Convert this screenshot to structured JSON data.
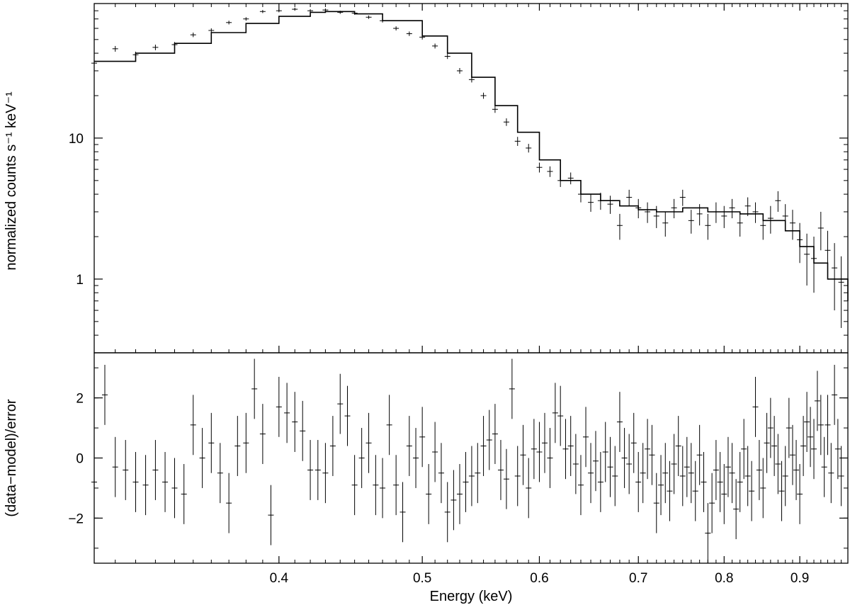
{
  "chart_data": [
    {
      "type": "scatter",
      "panel": "spectrum",
      "xlabel": "Energy (keV)",
      "ylabel": "normalized counts s⁻¹ keV⁻¹",
      "xscale": "log",
      "yscale": "log",
      "xlim": [
        0.3,
        0.97
      ],
      "ylim": [
        0.3,
        90
      ],
      "xticks": [
        0.4,
        0.5,
        0.6,
        0.7,
        0.8,
        0.9
      ],
      "yticks": [
        1,
        10
      ],
      "grid": false,
      "series": [
        {
          "type": "step",
          "x": [
            0.3,
            0.32,
            0.34,
            0.36,
            0.38,
            0.4,
            0.42,
            0.43,
            0.45,
            0.47,
            0.5,
            0.52,
            0.54,
            0.56,
            0.58,
            0.6,
            0.62,
            0.64,
            0.66,
            0.68,
            0.7,
            0.72,
            0.75,
            0.78,
            0.8,
            0.82,
            0.85,
            0.88,
            0.9,
            0.92,
            0.94,
            0.97
          ],
          "y": [
            35,
            40,
            47,
            56,
            65,
            73,
            78,
            79,
            76,
            68,
            53,
            40,
            27,
            17,
            11,
            7.0,
            5.0,
            4.0,
            3.6,
            3.3,
            3.1,
            3.0,
            3.2,
            3.0,
            3.0,
            2.9,
            2.6,
            2.2,
            1.7,
            1.3,
            1.0,
            0.7
          ]
        },
        {
          "type": "errorbar",
          "x": [
            0.3,
            0.31,
            0.32,
            0.33,
            0.34,
            0.35,
            0.36,
            0.37,
            0.38,
            0.39,
            0.4,
            0.41,
            0.42,
            0.43,
            0.44,
            0.45,
            0.46,
            0.47,
            0.48,
            0.49,
            0.5,
            0.51,
            0.52,
            0.53,
            0.54,
            0.55,
            0.56,
            0.57,
            0.58,
            0.59,
            0.6,
            0.61,
            0.62,
            0.63,
            0.64,
            0.65,
            0.66,
            0.67,
            0.68,
            0.69,
            0.7,
            0.71,
            0.72,
            0.73,
            0.74,
            0.75,
            0.76,
            0.77,
            0.78,
            0.79,
            0.8,
            0.81,
            0.82,
            0.83,
            0.84,
            0.85,
            0.86,
            0.87,
            0.88,
            0.89,
            0.9,
            0.91,
            0.92,
            0.93,
            0.94,
            0.95,
            0.96
          ],
          "y": [
            34,
            43,
            39,
            44,
            46,
            54,
            58,
            66,
            70,
            79,
            80,
            82,
            80,
            81,
            78,
            77,
            72,
            68,
            60,
            55,
            52,
            45,
            38,
            30,
            26,
            20,
            16,
            13,
            9.5,
            8.5,
            6.2,
            5.8,
            5.0,
            5.2,
            4.0,
            3.5,
            3.6,
            3.4,
            2.4,
            3.8,
            3.2,
            3.0,
            2.8,
            2.5,
            3.2,
            3.8,
            2.6,
            2.9,
            2.4,
            3.0,
            2.8,
            3.2,
            2.5,
            3.3,
            3.0,
            2.4,
            2.7,
            3.6,
            2.8,
            2.5,
            1.9,
            1.5,
            1.4,
            2.3,
            1.6,
            1.2,
            0.95
          ],
          "yerr": [
            2,
            2,
            2,
            2,
            2,
            2,
            2,
            2,
            2,
            2,
            2,
            2,
            2,
            2,
            2,
            2,
            2,
            2,
            2,
            2,
            2,
            1.8,
            1.6,
            1.4,
            1.2,
            1.0,
            0.9,
            0.8,
            0.7,
            0.6,
            0.5,
            0.5,
            0.5,
            0.5,
            0.5,
            0.5,
            0.5,
            0.5,
            0.5,
            0.5,
            0.5,
            0.5,
            0.5,
            0.5,
            0.5,
            0.5,
            0.5,
            0.5,
            0.5,
            0.5,
            0.5,
            0.5,
            0.5,
            0.5,
            0.5,
            0.5,
            0.6,
            0.6,
            0.6,
            0.6,
            0.6,
            0.6,
            0.6,
            0.7,
            0.6,
            0.6,
            0.5
          ]
        }
      ]
    },
    {
      "type": "scatter",
      "panel": "residuals",
      "xlabel": "Energy (keV)",
      "ylabel": "(data−model)/error",
      "xscale": "log",
      "xlim": [
        0.3,
        0.97
      ],
      "ylim": [
        -3.5,
        3.5
      ],
      "xticks": [
        0.4,
        0.5,
        0.6,
        0.7,
        0.8,
        0.9
      ],
      "yticks": [
        -2,
        0,
        2
      ],
      "grid": false,
      "series": [
        {
          "type": "errorbar",
          "x": [
            0.3,
            0.305,
            0.31,
            0.315,
            0.32,
            0.325,
            0.33,
            0.335,
            0.34,
            0.345,
            0.35,
            0.355,
            0.36,
            0.365,
            0.37,
            0.375,
            0.38,
            0.385,
            0.39,
            0.395,
            0.4,
            0.405,
            0.41,
            0.415,
            0.42,
            0.425,
            0.43,
            0.435,
            0.44,
            0.445,
            0.45,
            0.455,
            0.46,
            0.465,
            0.47,
            0.475,
            0.48,
            0.485,
            0.49,
            0.495,
            0.5,
            0.505,
            0.51,
            0.515,
            0.52,
            0.525,
            0.53,
            0.535,
            0.54,
            0.545,
            0.55,
            0.555,
            0.56,
            0.565,
            0.57,
            0.575,
            0.58,
            0.585,
            0.59,
            0.595,
            0.6,
            0.605,
            0.61,
            0.615,
            0.62,
            0.625,
            0.63,
            0.635,
            0.64,
            0.645,
            0.65,
            0.655,
            0.66,
            0.665,
            0.67,
            0.675,
            0.68,
            0.685,
            0.69,
            0.695,
            0.7,
            0.705,
            0.71,
            0.715,
            0.72,
            0.725,
            0.73,
            0.735,
            0.74,
            0.745,
            0.75,
            0.755,
            0.76,
            0.765,
            0.77,
            0.775,
            0.78,
            0.785,
            0.79,
            0.795,
            0.8,
            0.805,
            0.81,
            0.815,
            0.82,
            0.825,
            0.83,
            0.835,
            0.84,
            0.845,
            0.85,
            0.855,
            0.86,
            0.865,
            0.87,
            0.875,
            0.88,
            0.885,
            0.89,
            0.895,
            0.9,
            0.905,
            0.91,
            0.915,
            0.92,
            0.925,
            0.93,
            0.935,
            0.94,
            0.945,
            0.95,
            0.955,
            0.96
          ],
          "y": [
            -0.8,
            2.1,
            -0.3,
            -0.4,
            -0.8,
            -0.9,
            -0.4,
            -0.8,
            -1.0,
            -1.2,
            1.1,
            0.0,
            0.5,
            -0.5,
            -1.5,
            0.4,
            0.5,
            2.3,
            0.8,
            -1.9,
            1.7,
            1.5,
            1.2,
            0.9,
            -0.4,
            -0.4,
            -0.5,
            0.4,
            1.8,
            1.4,
            -0.9,
            0.0,
            0.5,
            -0.9,
            -1.0,
            1.1,
            -0.9,
            -1.8,
            0.4,
            0.0,
            0.7,
            -1.2,
            0.2,
            -0.5,
            -1.8,
            -1.4,
            -1.2,
            -0.8,
            -0.6,
            -0.5,
            0.4,
            0.6,
            0.8,
            -0.4,
            -0.7,
            2.3,
            -0.6,
            0.1,
            -1.0,
            0.3,
            0.2,
            0.5,
            0.0,
            1.5,
            1.4,
            0.3,
            0.4,
            -0.2,
            -0.9,
            0.7,
            -0.5,
            -0.1,
            -0.8,
            0.2,
            -0.3,
            -0.6,
            1.2,
            0.0,
            -0.2,
            0.5,
            -0.8,
            -0.5,
            0.3,
            0.1,
            -1.5,
            -0.9,
            -0.5,
            -1.1,
            -0.2,
            0.4,
            -0.6,
            -0.3,
            -0.5,
            -1.1,
            0.1,
            -0.8,
            -2.5,
            -1.5,
            -0.4,
            -0.8,
            -1.2,
            -0.3,
            -0.5,
            -1.7,
            -0.8,
            0.3,
            -0.6,
            -1.1,
            1.7,
            -0.4,
            -1.0,
            0.5,
            1.0,
            0.4,
            -0.2,
            -1.1,
            -0.6,
            1.0,
            0.1,
            -0.4,
            -1.2,
            0.4,
            1.2,
            0.7,
            0.3,
            1.9,
            1.1,
            -0.3,
            1.1,
            -0.5,
            2.1,
            0.3,
            -0.6
          ]
        }
      ]
    }
  ]
}
